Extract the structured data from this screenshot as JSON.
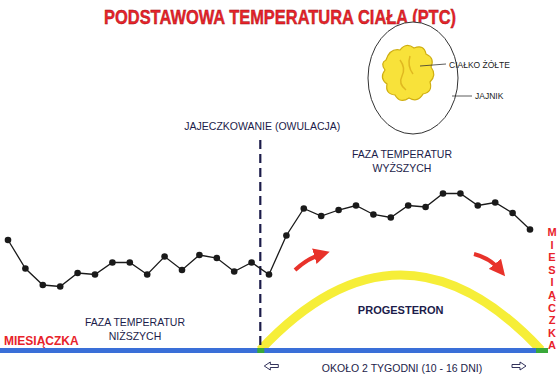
{
  "chart_data": {
    "type": "line",
    "title": "PODSTAWOWA TEMPERATURA CIAŁA (PTC)",
    "x": [
      1,
      2,
      3,
      4,
      5,
      6,
      7,
      8,
      9,
      10,
      11,
      12,
      13,
      14,
      15,
      16,
      17,
      18,
      19,
      20,
      21,
      22,
      23,
      24,
      25,
      26,
      27,
      28,
      29,
      30,
      31
    ],
    "values": [
      40,
      21,
      10,
      9,
      18,
      17,
      25,
      25,
      17,
      29,
      20,
      30,
      28,
      19,
      25,
      17,
      43,
      61,
      56,
      60,
      63,
      57,
      55,
      63,
      62,
      71,
      71,
      63,
      65,
      58,
      47
    ],
    "color": "#1a1a1a",
    "marker": "circle",
    "xlim": [
      1,
      31
    ],
    "ylim": [
      0,
      100
    ],
    "tick_labels": false,
    "annotations": {
      "ovulation": {
        "text": "JAJECZKOWANIE (OWULACJA)",
        "x": 15.5
      },
      "low_phase": {
        "lines": [
          "FAZA TEMPERATUR",
          "NIŻSZYCH"
        ]
      },
      "high_phase": {
        "lines": [
          "FAZA TEMPERATUR",
          "WYŻSZYCH"
        ]
      },
      "progesterone": {
        "text": "PROGESTERON"
      },
      "menstruation_left": {
        "text": "MIESIĄCZKA"
      },
      "menstruation_right": {
        "text": "MIESIĄCZKA"
      },
      "duration": {
        "text": "OKOŁO 2 TYGODNI (10 - 16 DNI)"
      },
      "corpus_luteum": {
        "text": "CIAŁKO ŻÓŁTE"
      },
      "ovary": {
        "text": "JAJNIK"
      }
    }
  }
}
